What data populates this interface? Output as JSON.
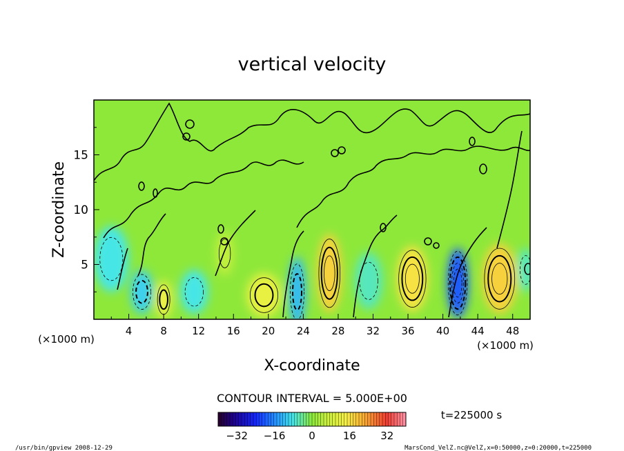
{
  "chart_data": {
    "type": "heatmap",
    "title": "vertical velocity",
    "xlabel": "X-coordinate",
    "ylabel": "Z-coordinate",
    "x_unit_left": "(×1000 m)",
    "x_unit_right": "(×1000 m)",
    "x_ticks": [
      "4",
      "8",
      "12",
      "16",
      "20",
      "24",
      "28",
      "32",
      "36",
      "40",
      "44",
      "48"
    ],
    "y_ticks": [
      "5",
      "10",
      "15"
    ],
    "xlim": [
      0,
      50
    ],
    "ylim": [
      0,
      20
    ],
    "contour_interval_label": "CONTOUR INTERVAL = 5.000E+00",
    "time_label": "t=225000 s",
    "colorbar": {
      "range": [
        -40,
        40
      ],
      "ticks": [
        "−32",
        "−16",
        "0",
        "16",
        "32"
      ],
      "tick_values": [
        -32,
        -16,
        0,
        16,
        32
      ]
    },
    "cells": [
      {
        "x": 2,
        "z": 5.5,
        "value": -8,
        "rx": 2.0,
        "rz": 3.0
      },
      {
        "x": 5.5,
        "z": 2.5,
        "value": -10,
        "rx": 1.3,
        "rz": 2.0
      },
      {
        "x": 8,
        "z": 1.8,
        "value": 14,
        "rx": 0.9,
        "rz": 1.7
      },
      {
        "x": 11.5,
        "z": 2.5,
        "value": -8,
        "rx": 1.6,
        "rz": 2.0
      },
      {
        "x": 15,
        "z": 6,
        "value": 6,
        "rx": 1.0,
        "rz": 2.0
      },
      {
        "x": 19.5,
        "z": 2.2,
        "value": 12,
        "rx": 2.0,
        "rz": 2.0
      },
      {
        "x": 23.3,
        "z": 2.5,
        "value": -12,
        "rx": 1.0,
        "rz": 3.2
      },
      {
        "x": 27,
        "z": 4.2,
        "value": 18,
        "rx": 1.4,
        "rz": 3.6
      },
      {
        "x": 31.5,
        "z": 3.5,
        "value": -6,
        "rx": 1.6,
        "rz": 2.6
      },
      {
        "x": 36.5,
        "z": 3.7,
        "value": 16,
        "rx": 1.8,
        "rz": 3.0
      },
      {
        "x": 41.7,
        "z": 3.3,
        "value": -20,
        "rx": 1.2,
        "rz": 3.2
      },
      {
        "x": 46.5,
        "z": 3.7,
        "value": 18,
        "rx": 2.0,
        "rz": 3.2
      },
      {
        "x": 49.5,
        "z": 4.5,
        "value": -6,
        "rx": 1.0,
        "rz": 2.0
      }
    ]
  },
  "footer": {
    "left": "/usr/bin/gpview  2008-12-29",
    "right": "MarsCond_VelZ.nc@VelZ,x=0:50000,z=0:20000,t=225000"
  }
}
